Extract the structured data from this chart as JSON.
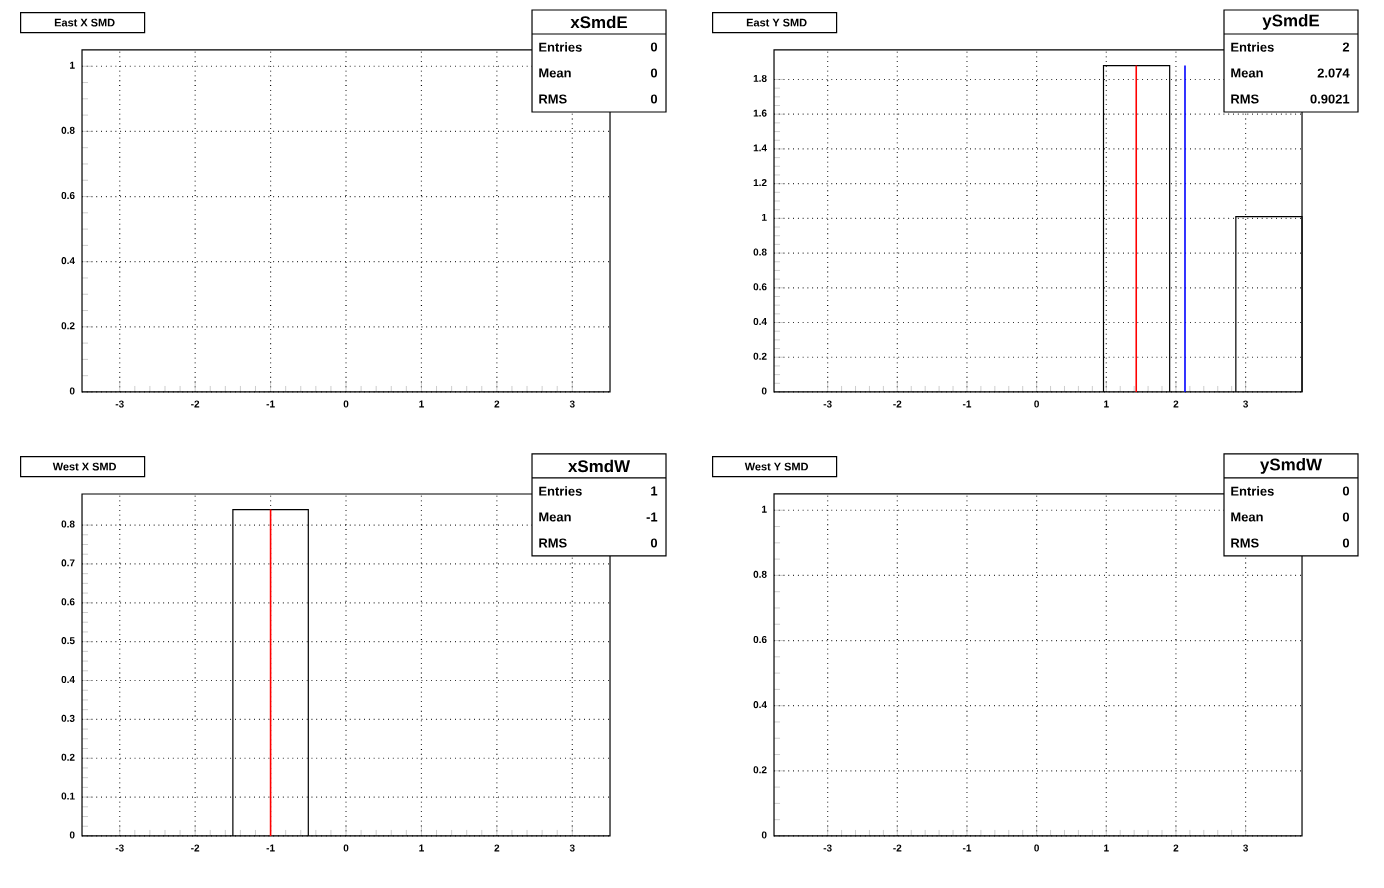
{
  "chart_data": [
    {
      "type": "histogram",
      "title": "East X SMD",
      "xlim": [
        -3.5,
        3.5
      ],
      "ylim": [
        0,
        1.05
      ],
      "xticks": [
        -3,
        -2,
        -1,
        0,
        1,
        2,
        3
      ],
      "yticks": [
        0,
        0.2,
        0.4,
        0.6,
        0.8,
        1
      ],
      "grid": true,
      "annotations": [
        "xSmdE",
        "Entries",
        "0",
        "Mean",
        "0",
        "RMS",
        "0"
      ]
    },
    {
      "type": "histogram",
      "title": "East Y SMD",
      "bins": [
        0.96,
        1.91,
        2.86,
        3.81
      ],
      "values": [
        1.88,
        null,
        1.01
      ],
      "color": "#000000",
      "xlim": [
        -3.77,
        3.81
      ],
      "ylim": [
        0,
        1.97
      ],
      "xticks": [
        -3,
        -2,
        -1,
        0,
        1,
        2,
        3
      ],
      "yticks": [
        0,
        0.2,
        0.4,
        0.6,
        0.8,
        1,
        1.2,
        1.4,
        1.6,
        1.8
      ],
      "grid": true,
      "ref_lines": [
        {
          "axis": "x",
          "value": 1.43,
          "color": "#ff0000"
        },
        {
          "axis": "x",
          "value": 2.13,
          "color": "#0000ff"
        }
      ],
      "annotations": [
        "ySmdE",
        "Entries",
        "2",
        "Mean",
        "2.074",
        "RMS",
        "0.9021"
      ]
    },
    {
      "type": "histogram",
      "title": "West X SMD",
      "bins": [
        -1.5,
        -0.5
      ],
      "values": [
        0.84
      ],
      "color": "#000000",
      "xlim": [
        -3.5,
        3.5
      ],
      "ylim": [
        0,
        0.88
      ],
      "xticks": [
        -3,
        -2,
        -1,
        0,
        1,
        2,
        3
      ],
      "yticks": [
        0,
        0.1,
        0.2,
        0.3,
        0.4,
        0.5,
        0.6,
        0.7,
        0.8
      ],
      "grid": true,
      "ref_lines": [
        {
          "axis": "x",
          "value": -1,
          "color": "#ff0000"
        }
      ],
      "annotations": [
        "xSmdW",
        "Entries",
        "1",
        "Mean",
        "-1",
        "RMS",
        "0"
      ]
    },
    {
      "type": "histogram",
      "title": "West Y SMD",
      "xlim": [
        -3.77,
        3.81
      ],
      "ylim": [
        0,
        1.05
      ],
      "xticks": [
        -3,
        -2,
        -1,
        0,
        1,
        2,
        3
      ],
      "yticks": [
        0,
        0.2,
        0.4,
        0.6,
        0.8,
        1
      ],
      "grid": true,
      "annotations": [
        "ySmdW",
        "Entries",
        "0",
        "Mean",
        "0",
        "RMS",
        "0"
      ]
    }
  ]
}
